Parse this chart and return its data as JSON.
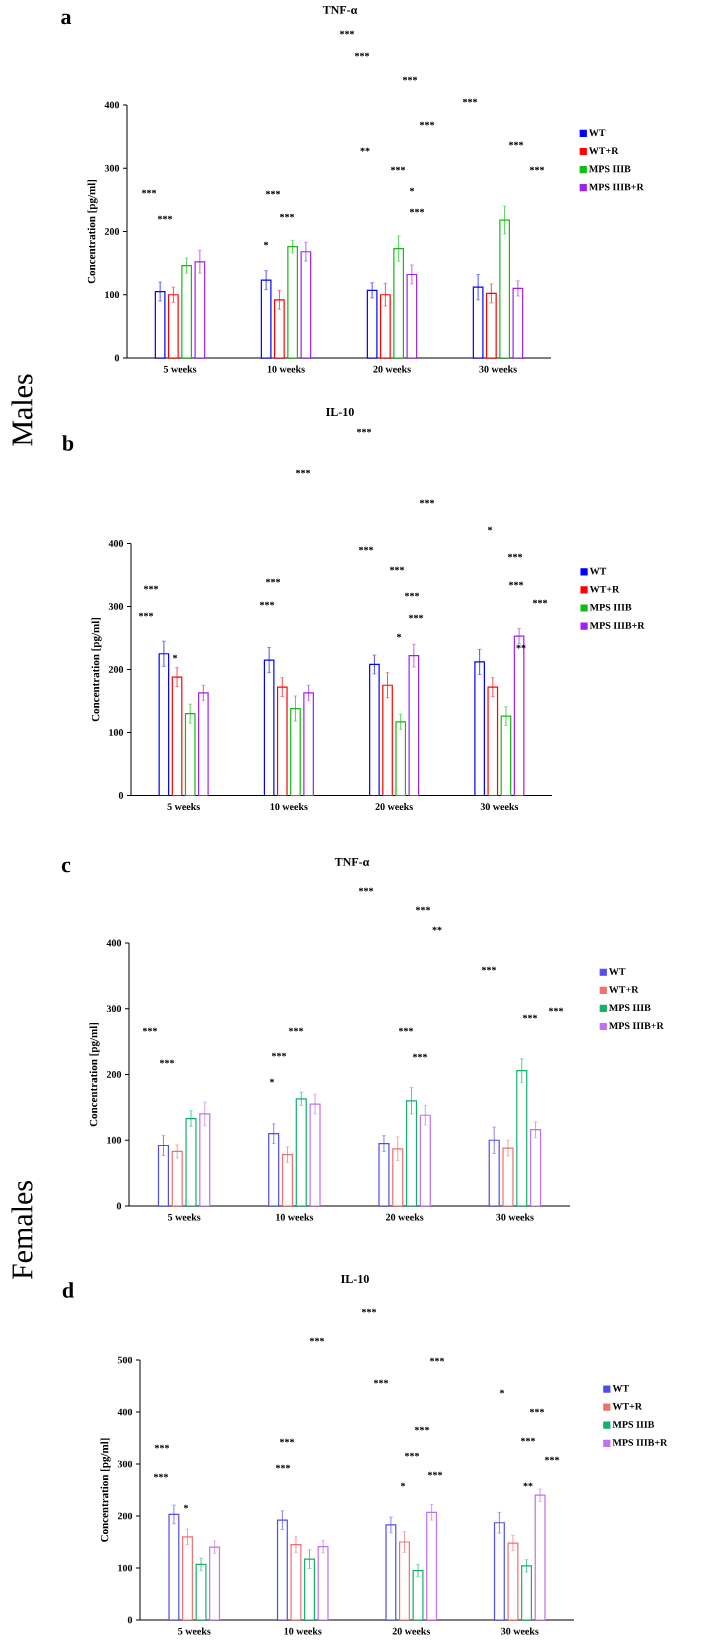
{
  "chart_data": [
    {
      "type": "bar",
      "title": "TNF-α",
      "subtitle": "a",
      "ylabel": "Concentration [pg/ml]",
      "categories": [
        "5 weeks",
        "10 weeks",
        "20 weeks",
        "30 weeks"
      ],
      "ylim": [
        0,
        400
      ],
      "yticks": [
        0,
        100,
        200,
        300,
        400
      ],
      "legend": "right",
      "series": [
        {
          "name": "WT",
          "color": "#0000ff",
          "values": [
            105,
            123,
            107,
            112
          ],
          "errors": [
            15,
            15,
            12,
            20
          ]
        },
        {
          "name": "WT+R",
          "color": "#ff0000",
          "values": [
            100,
            92,
            100,
            102
          ],
          "errors": [
            12,
            15,
            18,
            15
          ]
        },
        {
          "name": "MPS IIIB",
          "color": "#11bb11",
          "values": [
            146,
            176,
            173,
            218
          ],
          "errors": [
            12,
            10,
            20,
            22
          ]
        },
        {
          "name": "MPS IIIB+R",
          "color": "#a020f0",
          "values": [
            152,
            168,
            132,
            110
          ],
          "errors": [
            18,
            15,
            15,
            12
          ]
        }
      ],
      "annotations": [
        "Males",
        "***",
        "***",
        "***",
        "***",
        "***",
        "***",
        "**",
        "***",
        "***",
        "*",
        "***",
        "***",
        "***",
        "*",
        "***",
        "***"
      ]
    },
    {
      "type": "bar",
      "title": "IL-10",
      "subtitle": "b",
      "ylabel": "Concentration [pg/ml]",
      "categories": [
        "5 weeks",
        "10 weeks",
        "20 weeks",
        "30 weeks"
      ],
      "ylim": [
        0,
        400
      ],
      "yticks": [
        0,
        100,
        200,
        300,
        400
      ],
      "legend": "right",
      "series": [
        {
          "name": "WT",
          "color": "#0000ff",
          "values": [
            225,
            215,
            208,
            212
          ],
          "errors": [
            20,
            20,
            15,
            20
          ]
        },
        {
          "name": "WT+R",
          "color": "#ff0000",
          "values": [
            188,
            172,
            175,
            172
          ],
          "errors": [
            15,
            15,
            20,
            15
          ]
        },
        {
          "name": "MPS IIIB",
          "color": "#11bb11",
          "values": [
            130,
            138,
            117,
            126
          ],
          "errors": [
            15,
            20,
            12,
            15
          ]
        },
        {
          "name": "MPS IIIB+R",
          "color": "#a020f0",
          "values": [
            163,
            163,
            222,
            253
          ],
          "errors": [
            12,
            12,
            18,
            12
          ]
        }
      ],
      "annotations": [
        "***",
        "***",
        "***",
        "*",
        "***",
        "***",
        "***",
        "*",
        "***",
        "***",
        "***",
        "***",
        "***",
        "*",
        "***",
        "***",
        "***",
        "**"
      ]
    },
    {
      "type": "bar",
      "title": "TNF-α",
      "subtitle": "c",
      "ylabel": "Concentration [pg/ml]",
      "categories": [
        "5 weeks",
        "10 weeks",
        "20 weeks",
        "30 weeks"
      ],
      "ylim": [
        0,
        400
      ],
      "yticks": [
        0,
        100,
        200,
        300,
        400
      ],
      "legend": "right",
      "series": [
        {
          "name": "WT",
          "color": "#4f4fe8",
          "values": [
            92,
            110,
            95,
            100
          ],
          "errors": [
            15,
            15,
            12,
            20
          ]
        },
        {
          "name": "WT+R",
          "color": "#f07070",
          "values": [
            83,
            78,
            87,
            88
          ],
          "errors": [
            10,
            12,
            18,
            12
          ]
        },
        {
          "name": "MPS IIIB",
          "color": "#12b06a",
          "values": [
            133,
            163,
            160,
            206
          ],
          "errors": [
            12,
            10,
            20,
            18
          ]
        },
        {
          "name": "MPS IIIB+R",
          "color": "#c070f0",
          "values": [
            140,
            155,
            138,
            116
          ],
          "errors": [
            18,
            15,
            15,
            12
          ]
        }
      ],
      "annotations": [
        "Females",
        "***",
        "***",
        "**",
        "***",
        "***",
        "***",
        "***",
        "***",
        "*",
        "***",
        "***",
        "***",
        "***"
      ]
    },
    {
      "type": "bar",
      "title": "IL-10",
      "subtitle": "d",
      "ylabel": "Concentration [pg/ml]",
      "categories": [
        "5 weeks",
        "10 weeks",
        "20 weeks",
        "30 weeks"
      ],
      "ylim": [
        0,
        500
      ],
      "yticks": [
        0,
        100,
        200,
        300,
        400,
        500
      ],
      "legend": "right",
      "series": [
        {
          "name": "WT",
          "color": "#4f4fe8",
          "values": [
            203,
            192,
            183,
            187
          ],
          "errors": [
            18,
            18,
            15,
            20
          ]
        },
        {
          "name": "WT+R",
          "color": "#f07070",
          "values": [
            160,
            145,
            150,
            148
          ],
          "errors": [
            15,
            15,
            20,
            15
          ]
        },
        {
          "name": "MPS IIIB",
          "color": "#12b06a",
          "values": [
            107,
            117,
            95,
            104
          ],
          "errors": [
            12,
            18,
            12,
            12
          ]
        },
        {
          "name": "MPS IIIB+R",
          "color": "#c070f0",
          "values": [
            140,
            141,
            207,
            240
          ],
          "errors": [
            12,
            12,
            15,
            12
          ]
        }
      ],
      "annotations": [
        "***",
        "***",
        "***",
        "***",
        "*",
        "***",
        "***",
        "*",
        "***",
        "***",
        "***",
        "***",
        "*",
        "***",
        "***",
        "***",
        "***",
        "**"
      ]
    }
  ]
}
